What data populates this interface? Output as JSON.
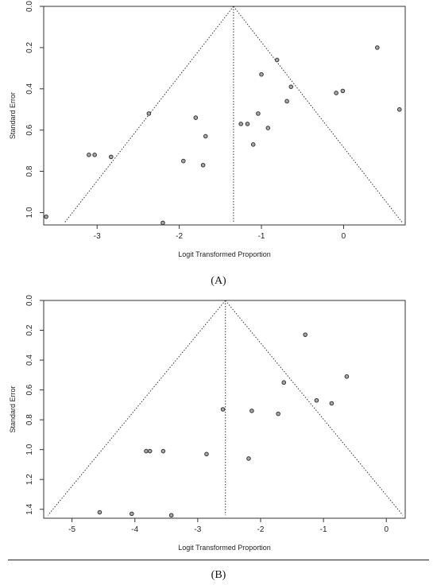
{
  "panels": [
    {
      "id": "A",
      "label": "(A)"
    },
    {
      "id": "B",
      "label": "(B)"
    }
  ],
  "chart_data": [
    {
      "type": "scatter",
      "panel": "(A)",
      "xlabel": "Logit Transformed Proportion",
      "ylabel": "Standard Error",
      "xlim": [
        -3.65,
        0.75
      ],
      "ylim": [
        1.06,
        0.0
      ],
      "y_inverted": true,
      "xticks": [
        "-3",
        "-2",
        "-1",
        "0"
      ],
      "xtick_values": [
        -3,
        -2,
        -1,
        0
      ],
      "yticks": [
        "0.0",
        "0.2",
        "0.4",
        "0.6",
        "0.8",
        "1.0"
      ],
      "ytick_values": [
        0.0,
        0.2,
        0.4,
        0.6,
        0.8,
        1.0
      ],
      "grid": false,
      "funnel": {
        "center": -1.34,
        "max_se": 1.05
      },
      "points": [
        {
          "x": -3.62,
          "y": 1.02
        },
        {
          "x": -3.1,
          "y": 0.72
        },
        {
          "x": -3.03,
          "y": 0.72
        },
        {
          "x": -2.83,
          "y": 0.73
        },
        {
          "x": -2.37,
          "y": 0.52
        },
        {
          "x": -2.2,
          "y": 1.05
        },
        {
          "x": -1.95,
          "y": 0.75
        },
        {
          "x": -1.8,
          "y": 0.54
        },
        {
          "x": -1.71,
          "y": 0.77
        },
        {
          "x": -1.68,
          "y": 0.63
        },
        {
          "x": -1.25,
          "y": 0.57
        },
        {
          "x": -1.17,
          "y": 0.57
        },
        {
          "x": -1.1,
          "y": 0.67
        },
        {
          "x": -1.04,
          "y": 0.52
        },
        {
          "x": -1.0,
          "y": 0.33
        },
        {
          "x": -0.92,
          "y": 0.59
        },
        {
          "x": -0.81,
          "y": 0.26
        },
        {
          "x": -0.69,
          "y": 0.46
        },
        {
          "x": -0.64,
          "y": 0.39
        },
        {
          "x": -0.09,
          "y": 0.42
        },
        {
          "x": -0.01,
          "y": 0.41
        },
        {
          "x": 0.41,
          "y": 0.2
        },
        {
          "x": 0.68,
          "y": 0.5
        }
      ]
    },
    {
      "type": "scatter",
      "panel": "(B)",
      "xlabel": "Logit Transformed Proportion",
      "ylabel": "Standard Error",
      "xlim": [
        -5.45,
        0.3
      ],
      "ylim": [
        1.46,
        0.0
      ],
      "y_inverted": true,
      "xticks": [
        "-5",
        "-4",
        "-3",
        "-2",
        "-1",
        "0"
      ],
      "xtick_values": [
        -5,
        -4,
        -3,
        -2,
        -1,
        0
      ],
      "yticks": [
        "0.0",
        "0.2",
        "0.4",
        "0.6",
        "0.8",
        "1.0",
        "1.2",
        "1.4"
      ],
      "ytick_values": [
        0.0,
        0.2,
        0.4,
        0.6,
        0.8,
        1.0,
        1.2,
        1.4
      ],
      "grid": false,
      "funnel": {
        "center": -2.56,
        "max_se": 1.44
      },
      "points": [
        {
          "x": -4.56,
          "y": 1.42
        },
        {
          "x": -4.05,
          "y": 1.43
        },
        {
          "x": -3.82,
          "y": 1.01
        },
        {
          "x": -3.76,
          "y": 1.01
        },
        {
          "x": -3.55,
          "y": 1.01
        },
        {
          "x": -3.42,
          "y": 1.44
        },
        {
          "x": -2.86,
          "y": 1.03
        },
        {
          "x": -2.6,
          "y": 0.73
        },
        {
          "x": -2.19,
          "y": 1.06
        },
        {
          "x": -2.14,
          "y": 0.74
        },
        {
          "x": -1.72,
          "y": 0.76
        },
        {
          "x": -1.63,
          "y": 0.55
        },
        {
          "x": -1.29,
          "y": 0.23
        },
        {
          "x": -1.11,
          "y": 0.67
        },
        {
          "x": -0.87,
          "y": 0.69
        },
        {
          "x": -0.63,
          "y": 0.51
        }
      ]
    }
  ]
}
